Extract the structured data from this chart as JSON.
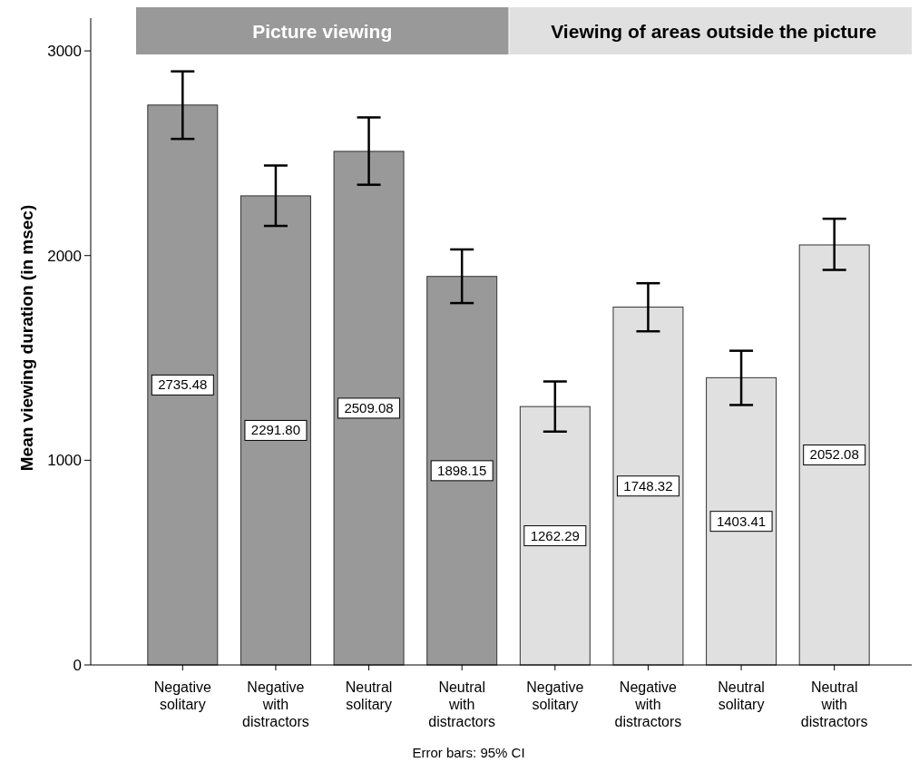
{
  "chart_data": {
    "type": "bar",
    "ylabel": "Mean viewing duration (in msec)",
    "categories": [
      "Negative solitary",
      "Negative with distractors",
      "Neutral solitary",
      "Neutral with distractors",
      "Negative solitary",
      "Negative with distractors",
      "Neutral solitary",
      "Neutral with distractors"
    ],
    "series": [
      {
        "name": "Picture viewing",
        "color": "#999999",
        "values": [
          2735.48,
          2291.8,
          2509.08,
          1898.15,
          null,
          null,
          null,
          null
        ],
        "value_labels": [
          "2735.48",
          "2291.80",
          "2509.08",
          "1898.15",
          null,
          null,
          null,
          null
        ],
        "errors": [
          [
            2570,
            2900
          ],
          [
            2145,
            2440
          ],
          [
            2346,
            2675
          ],
          [
            1768,
            2030
          ],
          null,
          null,
          null,
          null
        ]
      },
      {
        "name": "Viewing of areas outside the picture",
        "color": "#e0e0e0",
        "values": [
          null,
          null,
          null,
          null,
          1262.29,
          1748.32,
          1403.41,
          2052.08
        ],
        "value_labels": [
          null,
          null,
          null,
          null,
          "1262.29",
          "1748.32",
          "1403.41",
          "2052.08"
        ],
        "errors": [
          null,
          null,
          null,
          null,
          [
            1140,
            1385
          ],
          [
            1630,
            1865
          ],
          [
            1270,
            1535
          ],
          [
            1930,
            2180
          ]
        ]
      }
    ],
    "ylim": [
      0,
      3160
    ],
    "yticks": [
      0,
      1000,
      2000,
      3000
    ],
    "grid": false,
    "legend": "top",
    "annotations": [
      "Error bars: 95% CI"
    ]
  }
}
